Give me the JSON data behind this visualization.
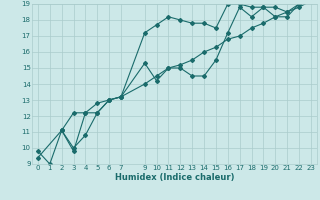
{
  "title": "",
  "xlabel": "Humidex (Indice chaleur)",
  "xlim": [
    -0.5,
    23.5
  ],
  "ylim": [
    9,
    19
  ],
  "yticks": [
    9,
    10,
    11,
    12,
    13,
    14,
    15,
    16,
    17,
    18,
    19
  ],
  "xtick_vals": [
    0,
    1,
    2,
    3,
    4,
    5,
    6,
    7,
    9,
    10,
    11,
    12,
    13,
    14,
    15,
    16,
    17,
    18,
    19,
    20,
    21,
    22,
    23
  ],
  "bg_color": "#cce8e8",
  "grid_color": "#aacccc",
  "line_color": "#1a6b6b",
  "line1_x": [
    0,
    1,
    2,
    3,
    4,
    5,
    6,
    7,
    9,
    10,
    11,
    12,
    13,
    14,
    15,
    16,
    17,
    18,
    19,
    20,
    21,
    22,
    23
  ],
  "line1_y": [
    9.8,
    9.0,
    11.1,
    9.8,
    12.2,
    12.2,
    13.0,
    13.2,
    17.2,
    17.7,
    18.2,
    18.0,
    17.8,
    17.8,
    17.5,
    19.0,
    19.0,
    18.8,
    18.8,
    18.2,
    18.2,
    19.0,
    19.2
  ],
  "line2_x": [
    2,
    3,
    4,
    5,
    6,
    7,
    9,
    10,
    11,
    12,
    13,
    14,
    15,
    16,
    17,
    18,
    19,
    20,
    21,
    22,
    23
  ],
  "line2_y": [
    11.1,
    10.0,
    10.8,
    12.2,
    13.0,
    13.2,
    15.3,
    14.2,
    15.0,
    15.0,
    14.5,
    14.5,
    15.5,
    17.2,
    18.8,
    18.2,
    18.8,
    18.8,
    18.5,
    19.0,
    19.2
  ],
  "line3_x": [
    0,
    2,
    3,
    4,
    5,
    6,
    7,
    9,
    10,
    11,
    12,
    13,
    14,
    15,
    16,
    17,
    18,
    19,
    20,
    21,
    22,
    23
  ],
  "line3_y": [
    9.4,
    11.1,
    12.2,
    12.2,
    12.8,
    13.0,
    13.2,
    14.0,
    14.5,
    15.0,
    15.2,
    15.5,
    16.0,
    16.3,
    16.8,
    17.0,
    17.5,
    17.8,
    18.2,
    18.5,
    18.8,
    19.2
  ],
  "tick_fontsize": 5.0,
  "xlabel_fontsize": 6.0
}
